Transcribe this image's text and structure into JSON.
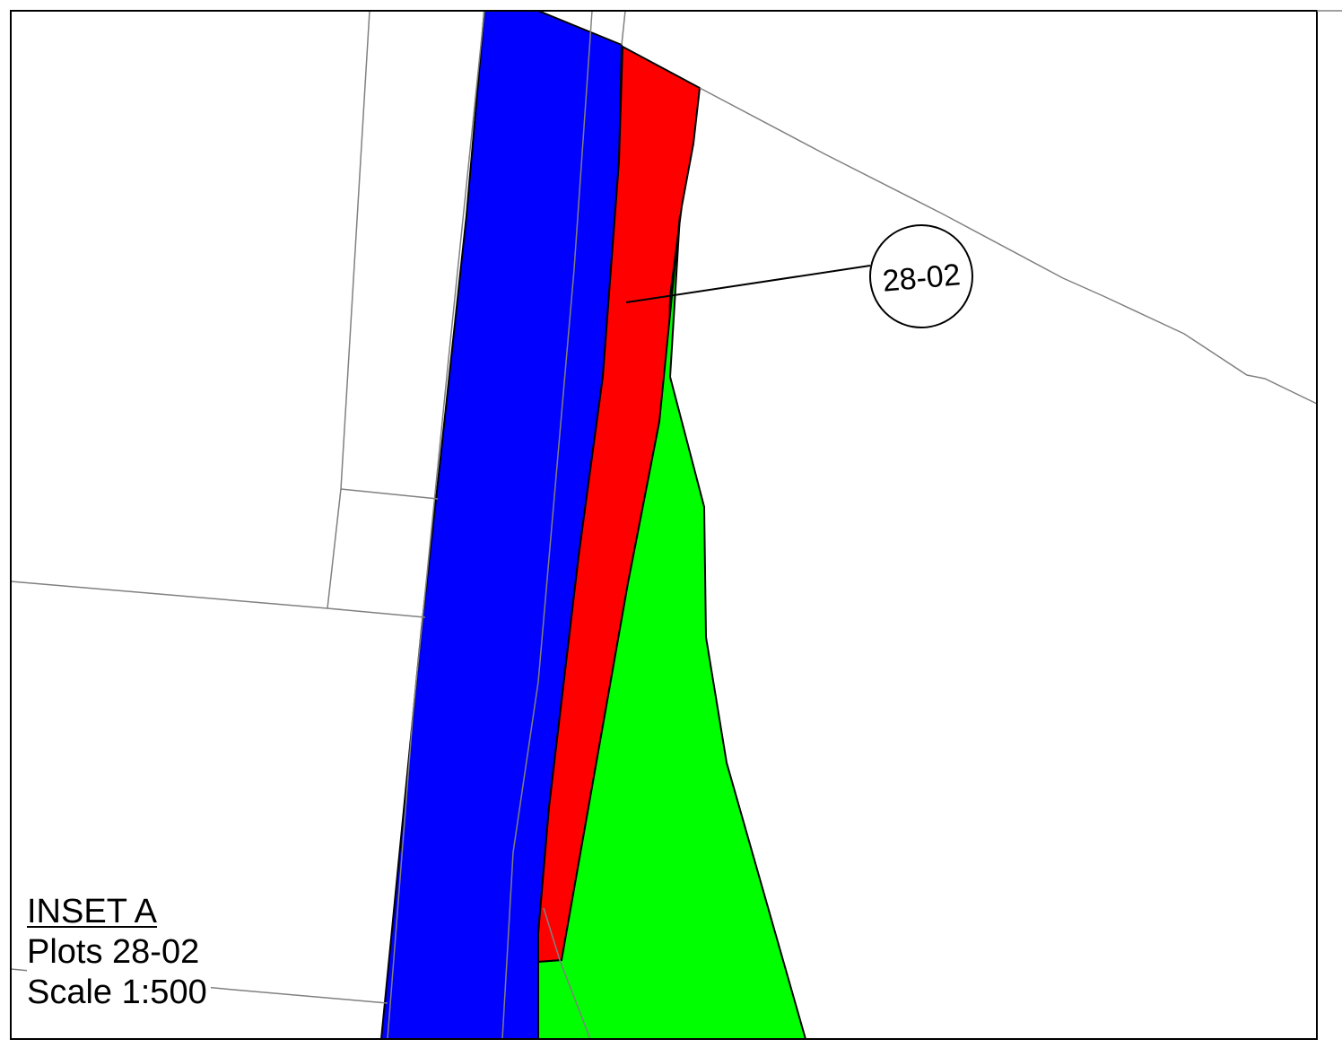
{
  "callout": {
    "plot_id": "28-02"
  },
  "inset": {
    "title": "INSET A",
    "plots_line": "Plots 28-02",
    "scale_line": "Scale 1:500"
  },
  "colors": {
    "background": "#ffffff",
    "frame": "#000000",
    "boundary_line": "#808080",
    "blue_parcel": "#0000ff",
    "red_parcel": "#ff0000",
    "green_parcel": "#00ff00"
  }
}
